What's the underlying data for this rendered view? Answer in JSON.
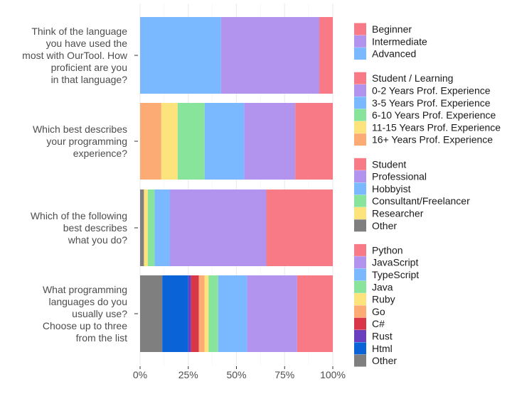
{
  "chart_data": {
    "type": "bar",
    "orientation": "horizontal",
    "stacked": true,
    "normalized": true,
    "xlim": [
      0,
      100
    ],
    "x_ticks": [
      "0%",
      "25%",
      "50%",
      "75%",
      "100%"
    ],
    "grid": true,
    "legend_position": "right",
    "questions": [
      {
        "label_lines": [
          "Think of the language",
          "you have used the",
          "most with OurTool. How",
          "proficient are you",
          "in that language?"
        ],
        "segments": [
          {
            "name": "Advanced",
            "value": 42,
            "color": "#7ab8ff"
          },
          {
            "name": "Intermediate",
            "value": 51,
            "color": "#b294ee"
          },
          {
            "name": "Beginner",
            "value": 7,
            "color": "#f77a86"
          }
        ]
      },
      {
        "label_lines": [
          "Which best describes",
          "your programming",
          "experience?"
        ],
        "segments": [
          {
            "name": "16+ Years Prof. Experience",
            "value": 11,
            "color": "#fcab74"
          },
          {
            "name": "11-15 Years Prof. Experience",
            "value": 8.5,
            "color": "#fde37c"
          },
          {
            "name": "6-10 Years Prof. Experience",
            "value": 14,
            "color": "#88e49b"
          },
          {
            "name": "3-5 Years Prof. Experience",
            "value": 20.5,
            "color": "#7ab8ff"
          },
          {
            "name": "0-2 Years Prof. Experience",
            "value": 26.5,
            "color": "#b294ee"
          },
          {
            "name": "Student / Learning",
            "value": 19.5,
            "color": "#f77a86"
          }
        ]
      },
      {
        "label_lines": [
          "Which of the following",
          "best describes",
          "what you do?"
        ],
        "segments": [
          {
            "name": "Other",
            "value": 2,
            "color": "#7f7f7f"
          },
          {
            "name": "Researcher",
            "value": 2,
            "color": "#fde37c"
          },
          {
            "name": "Consultant/Freelancer",
            "value": 3.5,
            "color": "#88e49b"
          },
          {
            "name": "Hobbyist",
            "value": 8,
            "color": "#7ab8ff"
          },
          {
            "name": "Professional",
            "value": 50,
            "color": "#b294ee"
          },
          {
            "name": "Student",
            "value": 34.5,
            "color": "#f77a86"
          }
        ]
      },
      {
        "label_lines": [
          "What programming",
          "languages do you",
          "usually use?",
          "Choose up to three",
          "from the list"
        ],
        "segments": [
          {
            "name": "Other",
            "value": 11.5,
            "color": "#7f7f7f"
          },
          {
            "name": "Html",
            "value": 13.5,
            "color": "#0a64d8"
          },
          {
            "name": "Rust",
            "value": 1.5,
            "color": "#6a3fbf"
          },
          {
            "name": "C#",
            "value": 4,
            "color": "#d93648"
          },
          {
            "name": "Go",
            "value": 3,
            "color": "#fcab74"
          },
          {
            "name": "Ruby",
            "value": 2,
            "color": "#fde37c"
          },
          {
            "name": "Java",
            "value": 5,
            "color": "#88e49b"
          },
          {
            "name": "TypeScript",
            "value": 15,
            "color": "#7ab8ff"
          },
          {
            "name": "JavaScript",
            "value": 26,
            "color": "#b294ee"
          },
          {
            "name": "Python",
            "value": 18.5,
            "color": "#f77a86"
          }
        ]
      }
    ],
    "legend_groups": [
      [
        {
          "label": "Beginner",
          "color": "#f77a86"
        },
        {
          "label": "Intermediate",
          "color": "#b294ee"
        },
        {
          "label": "Advanced",
          "color": "#7ab8ff"
        }
      ],
      [
        {
          "label": "Student / Learning",
          "color": "#f77a86"
        },
        {
          "label": "0-2 Years Prof. Experience",
          "color": "#b294ee"
        },
        {
          "label": "3-5 Years Prof. Experience",
          "color": "#7ab8ff"
        },
        {
          "label": "6-10 Years Prof. Experience",
          "color": "#88e49b"
        },
        {
          "label": "11-15 Years Prof. Experience",
          "color": "#fde37c"
        },
        {
          "label": "16+ Years Prof. Experience",
          "color": "#fcab74"
        }
      ],
      [
        {
          "label": "Student",
          "color": "#f77a86"
        },
        {
          "label": "Professional",
          "color": "#b294ee"
        },
        {
          "label": "Hobbyist",
          "color": "#7ab8ff"
        },
        {
          "label": "Consultant/Freelancer",
          "color": "#88e49b"
        },
        {
          "label": "Researcher",
          "color": "#fde37c"
        },
        {
          "label": "Other",
          "color": "#7f7f7f"
        }
      ],
      [
        {
          "label": "Python",
          "color": "#f77a86"
        },
        {
          "label": "JavaScript",
          "color": "#b294ee"
        },
        {
          "label": "TypeScript",
          "color": "#7ab8ff"
        },
        {
          "label": "Java",
          "color": "#88e49b"
        },
        {
          "label": "Ruby",
          "color": "#fde37c"
        },
        {
          "label": "Go",
          "color": "#fcab74"
        },
        {
          "label": "C#",
          "color": "#d93648"
        },
        {
          "label": "Rust",
          "color": "#6a3fbf"
        },
        {
          "label": "Html",
          "color": "#0a64d8"
        },
        {
          "label": "Other",
          "color": "#7f7f7f"
        }
      ]
    ]
  }
}
